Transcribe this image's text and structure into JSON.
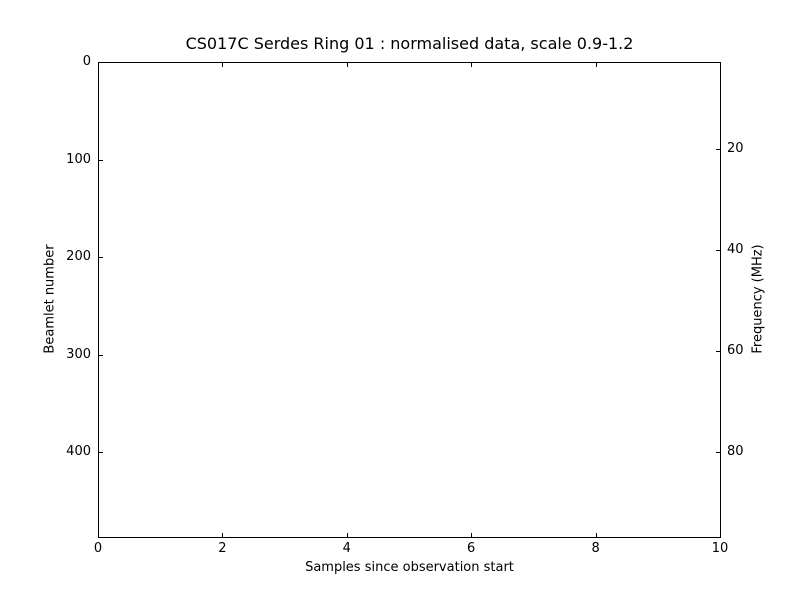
{
  "title": "CS017C Serdes Ring 01 : normalised data, scale 0.9-1.2",
  "chart_data": {
    "type": "heatmap",
    "title": "CS017C Serdes Ring 01 : normalised data, scale 0.9-1.2",
    "xlabel": "Samples since observation start",
    "ylabel_left": "Beamlet number",
    "ylabel_right": "Frequency (MHz)",
    "x_axis": {
      "min": 0,
      "max": 10,
      "ticks": [
        0,
        2,
        4,
        6,
        8,
        10
      ]
    },
    "y_axis_left": {
      "min": 0,
      "max": 487,
      "ticks": [
        0,
        100,
        200,
        300,
        400
      ],
      "direction": "increasing downward"
    },
    "y_axis_right": {
      "min": 2.8,
      "max": 96.8,
      "ticks": [
        20,
        40,
        60,
        80
      ],
      "direction": "increasing downward"
    },
    "grid": false,
    "legend": false,
    "plot_area_empty": true,
    "background_color": "#ffffff",
    "frame_color": "#000000",
    "colorbar_scale": "0.9-1.2"
  }
}
